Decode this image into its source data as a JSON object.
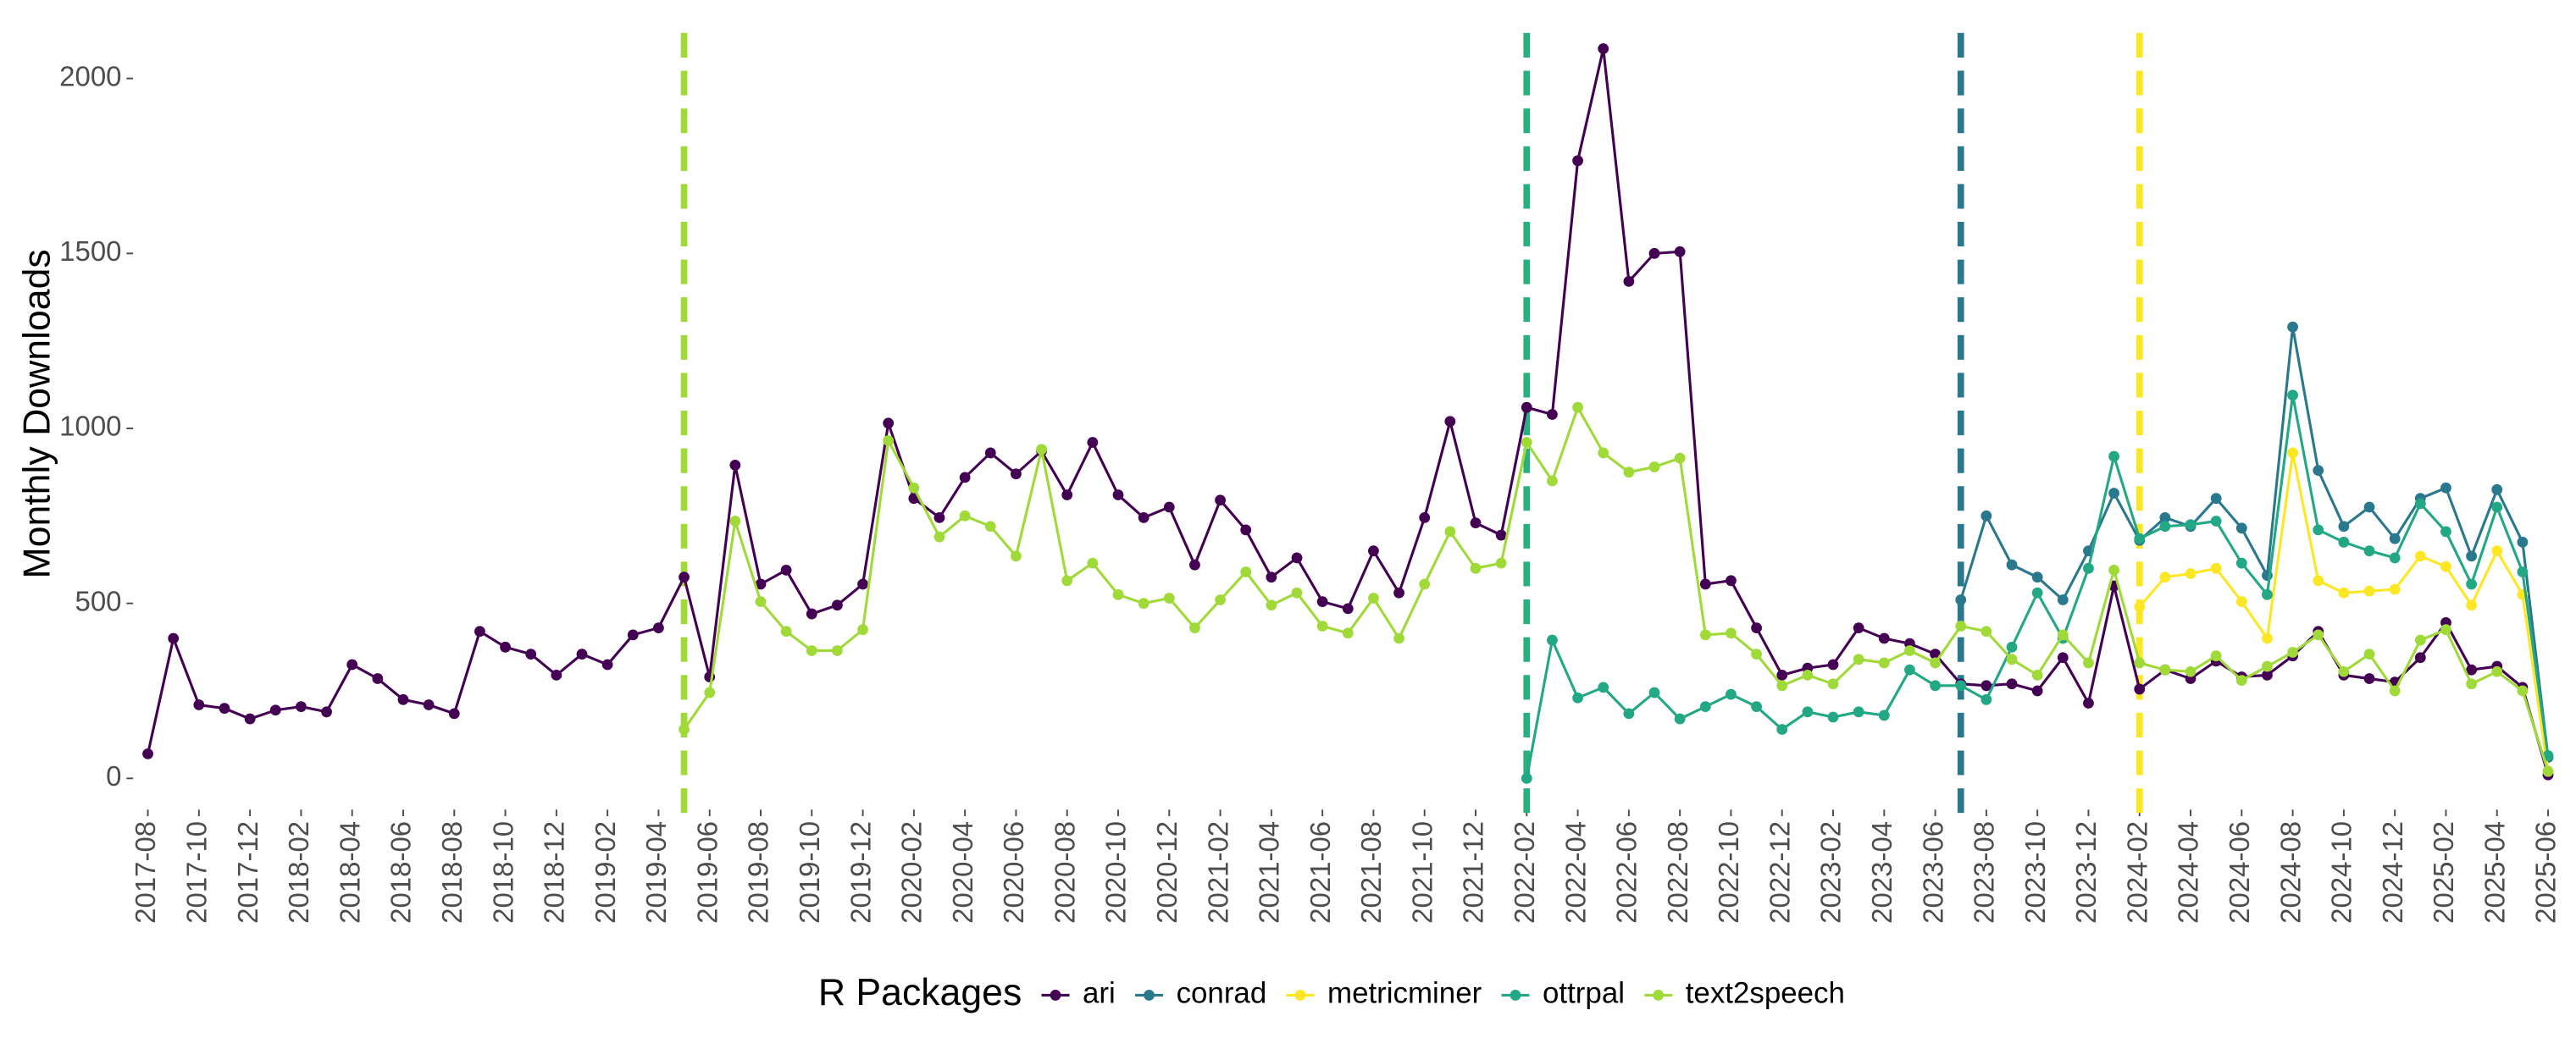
{
  "chart_data": {
    "type": "line",
    "ylabel": "Monthly Downloads",
    "legend_title": "R Packages",
    "legend": "bottom",
    "x": [
      "2017-08",
      "2017-09",
      "2017-10",
      "2017-11",
      "2017-12",
      "2018-01",
      "2018-02",
      "2018-03",
      "2018-04",
      "2018-05",
      "2018-06",
      "2018-07",
      "2018-08",
      "2018-09",
      "2018-10",
      "2018-11",
      "2018-12",
      "2019-01",
      "2019-02",
      "2019-03",
      "2019-04",
      "2019-05",
      "2019-06",
      "2019-07",
      "2019-08",
      "2019-09",
      "2019-10",
      "2019-11",
      "2019-12",
      "2020-01",
      "2020-02",
      "2020-03",
      "2020-04",
      "2020-05",
      "2020-06",
      "2020-07",
      "2020-08",
      "2020-09",
      "2020-10",
      "2020-11",
      "2020-12",
      "2021-01",
      "2021-02",
      "2021-03",
      "2021-04",
      "2021-05",
      "2021-06",
      "2021-07",
      "2021-08",
      "2021-09",
      "2021-10",
      "2021-11",
      "2021-12",
      "2022-01",
      "2022-02",
      "2022-03",
      "2022-04",
      "2022-05",
      "2022-06",
      "2022-07",
      "2022-08",
      "2022-09",
      "2022-10",
      "2022-11",
      "2022-12",
      "2023-01",
      "2023-02",
      "2023-03",
      "2023-04",
      "2023-05",
      "2023-06",
      "2023-07",
      "2023-08",
      "2023-09",
      "2023-10",
      "2023-11",
      "2023-12",
      "2024-01",
      "2024-02",
      "2024-03",
      "2024-04",
      "2024-05",
      "2024-06",
      "2024-07",
      "2024-08",
      "2024-09",
      "2024-10",
      "2024-11",
      "2024-12",
      "2025-01",
      "2025-02",
      "2025-03",
      "2025-04",
      "2025-05",
      "2025-06"
    ],
    "xticks": [
      "2017-08",
      "2017-10",
      "2017-12",
      "2018-02",
      "2018-04",
      "2018-06",
      "2018-08",
      "2018-10",
      "2018-12",
      "2019-02",
      "2019-04",
      "2019-06",
      "2019-08",
      "2019-10",
      "2019-12",
      "2020-02",
      "2020-04",
      "2020-06",
      "2020-08",
      "2020-10",
      "2020-12",
      "2021-02",
      "2021-04",
      "2021-06",
      "2021-08",
      "2021-10",
      "2021-12",
      "2022-02",
      "2022-04",
      "2022-06",
      "2022-08",
      "2022-10",
      "2022-12",
      "2023-02",
      "2023-04",
      "2023-06",
      "2023-08",
      "2023-10",
      "2023-12",
      "2024-02",
      "2024-04",
      "2024-06",
      "2024-08",
      "2024-10",
      "2024-12",
      "2025-02",
      "2025-04",
      "2025-06"
    ],
    "ylim": [
      -80,
      2130
    ],
    "yticks": [
      0,
      500,
      1000,
      1500,
      2000
    ],
    "grid": false,
    "vlines": [
      {
        "x": "2019-05",
        "color": "#a0da39"
      },
      {
        "x": "2022-02",
        "color": "#2ab07f"
      },
      {
        "x": "2023-07",
        "color": "#2a788e"
      },
      {
        "x": "2024-02",
        "color": "#fde725"
      }
    ],
    "series": [
      {
        "name": "ari",
        "color": "#440154",
        "values": [
          70,
          400,
          210,
          200,
          170,
          195,
          205,
          190,
          325,
          285,
          225,
          210,
          185,
          420,
          375,
          355,
          295,
          355,
          325,
          410,
          430,
          575,
          290,
          895,
          555,
          595,
          470,
          495,
          555,
          1015,
          800,
          745,
          860,
          930,
          870,
          935,
          810,
          960,
          810,
          745,
          775,
          610,
          795,
          710,
          575,
          630,
          505,
          485,
          650,
          530,
          745,
          1020,
          730,
          695,
          1060,
          1040,
          1765,
          2085,
          1420,
          1500,
          1505,
          555,
          565,
          430,
          295,
          315,
          325,
          430,
          400,
          385,
          355,
          270,
          265,
          270,
          250,
          345,
          215,
          550,
          255,
          310,
          285,
          335,
          290,
          295,
          350,
          420,
          295,
          285,
          275,
          345,
          445,
          310,
          320,
          260,
          10
        ]
      },
      {
        "name": "conrad",
        "color": "#2a788e",
        "values": [
          null,
          null,
          null,
          null,
          null,
          null,
          null,
          null,
          null,
          null,
          null,
          null,
          null,
          null,
          null,
          null,
          null,
          null,
          null,
          null,
          null,
          null,
          null,
          null,
          null,
          null,
          null,
          null,
          null,
          null,
          null,
          null,
          null,
          null,
          null,
          null,
          null,
          null,
          null,
          null,
          null,
          null,
          null,
          null,
          null,
          null,
          null,
          null,
          null,
          null,
          null,
          null,
          null,
          null,
          null,
          null,
          null,
          null,
          null,
          null,
          null,
          null,
          null,
          null,
          null,
          null,
          null,
          null,
          null,
          null,
          null,
          510,
          750,
          610,
          575,
          510,
          650,
          815,
          680,
          745,
          720,
          800,
          715,
          580,
          1290,
          880,
          720,
          775,
          685,
          800,
          830,
          635,
          825,
          675,
          60
        ]
      },
      {
        "name": "metricminer",
        "color": "#fde725",
        "values": [
          null,
          null,
          null,
          null,
          null,
          null,
          null,
          null,
          null,
          null,
          null,
          null,
          null,
          null,
          null,
          null,
          null,
          null,
          null,
          null,
          null,
          null,
          null,
          null,
          null,
          null,
          null,
          null,
          null,
          null,
          null,
          null,
          null,
          null,
          null,
          null,
          null,
          null,
          null,
          null,
          null,
          null,
          null,
          null,
          null,
          null,
          null,
          null,
          null,
          null,
          null,
          null,
          null,
          null,
          null,
          null,
          null,
          null,
          null,
          null,
          null,
          null,
          null,
          null,
          null,
          null,
          null,
          null,
          null,
          null,
          null,
          null,
          null,
          null,
          null,
          null,
          null,
          null,
          490,
          575,
          585,
          600,
          505,
          400,
          930,
          565,
          530,
          535,
          540,
          635,
          605,
          495,
          650,
          525,
          20
        ]
      },
      {
        "name": "ottrpal",
        "color": "#22a884",
        "values": [
          null,
          null,
          null,
          null,
          null,
          null,
          null,
          null,
          null,
          null,
          null,
          null,
          null,
          null,
          null,
          null,
          null,
          null,
          null,
          null,
          null,
          null,
          null,
          null,
          null,
          null,
          null,
          null,
          null,
          null,
          null,
          null,
          null,
          null,
          null,
          null,
          null,
          null,
          null,
          null,
          null,
          null,
          null,
          null,
          null,
          null,
          null,
          null,
          null,
          null,
          null,
          null,
          null,
          null,
          0,
          395,
          230,
          260,
          185,
          245,
          170,
          205,
          240,
          205,
          140,
          190,
          175,
          190,
          180,
          310,
          265,
          265,
          225,
          375,
          530,
          400,
          600,
          920,
          685,
          720,
          725,
          735,
          615,
          525,
          1095,
          710,
          675,
          650,
          630,
          785,
          705,
          555,
          775,
          590,
          65
        ]
      },
      {
        "name": "text2speech",
        "color": "#a0da39",
        "values": [
          null,
          null,
          null,
          null,
          null,
          null,
          null,
          null,
          null,
          null,
          null,
          null,
          null,
          null,
          null,
          null,
          null,
          null,
          null,
          null,
          null,
          140,
          245,
          735,
          505,
          420,
          365,
          365,
          425,
          965,
          830,
          690,
          750,
          720,
          635,
          940,
          565,
          615,
          525,
          500,
          515,
          430,
          510,
          590,
          495,
          530,
          435,
          415,
          515,
          400,
          555,
          705,
          600,
          615,
          960,
          850,
          1060,
          930,
          875,
          890,
          915,
          410,
          415,
          355,
          265,
          295,
          270,
          340,
          330,
          365,
          330,
          435,
          420,
          340,
          295,
          410,
          330,
          595,
          330,
          310,
          305,
          350,
          280,
          320,
          360,
          410,
          305,
          355,
          250,
          395,
          425,
          270,
          305,
          250,
          20
        ]
      }
    ]
  }
}
